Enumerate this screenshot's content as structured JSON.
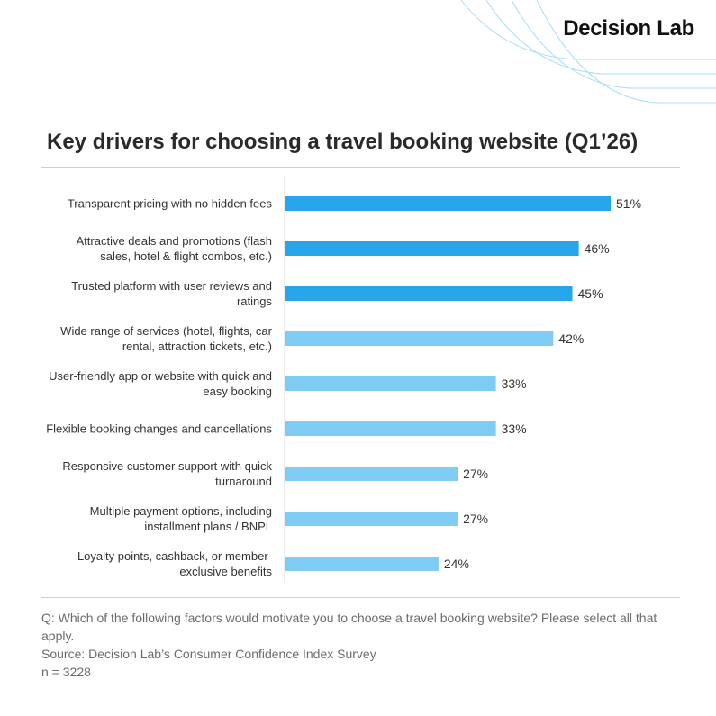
{
  "brand": "Decision Lab",
  "title": "Key drivers for choosing a travel booking website (Q1’26)",
  "colors": {
    "highlight": "#26A5EA",
    "standard": "#7ECBF4",
    "axis": "#D9D9D9",
    "decor_lines": "#A9DCF6"
  },
  "chart_data": {
    "type": "bar",
    "orientation": "horizontal",
    "categories": [
      [
        "Transparent pricing with no hidden fees"
      ],
      [
        "Attractive deals and promotions (flash",
        "sales, hotel & flight combos, etc.)"
      ],
      [
        "Trusted platform with user reviews and",
        "ratings"
      ],
      [
        "Wide range of services (hotel, flights, car",
        "rental, attraction tickets, etc.)"
      ],
      [
        "User-friendly app or website with quick and",
        "easy booking"
      ],
      [
        "Flexible booking changes and cancellations"
      ],
      [
        "Responsive customer support with quick",
        "turnaround"
      ],
      [
        "Multiple payment options, including",
        "installment plans / BNPL"
      ],
      [
        "Loyalty points, cashback, or member-",
        "exclusive benefits"
      ]
    ],
    "values": [
      51,
      46,
      45,
      42,
      33,
      33,
      27,
      27,
      24
    ],
    "value_labels": [
      "51%",
      "46%",
      "45%",
      "42%",
      "33%",
      "33%",
      "27%",
      "27%",
      "24%"
    ],
    "highlighted_count": 3,
    "xlim": [
      0,
      51
    ],
    "legend": "none",
    "grid": false
  },
  "footer": {
    "question": "Q: Which of the following factors would motivate you to choose a travel booking website? Please select all that apply.",
    "source": "Source: Decision Lab’s Consumer Confidence Index Survey",
    "sample": "n = 3228"
  }
}
